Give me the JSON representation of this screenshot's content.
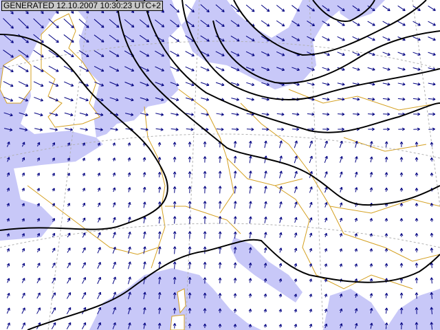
{
  "stamp": {
    "text": "GENERATED 12.10.2007 10:30:23 UTC+2"
  },
  "colors": {
    "sea": "#c8c8f8",
    "land": "#ffffff",
    "borders": "#d4a020",
    "isobars": "#000000",
    "wind_arrows": "#000080",
    "graticule": "#b0b0b0"
  },
  "layers": [
    "sea",
    "land",
    "country-borders",
    "graticule",
    "wind-arrows",
    "isobars"
  ]
}
